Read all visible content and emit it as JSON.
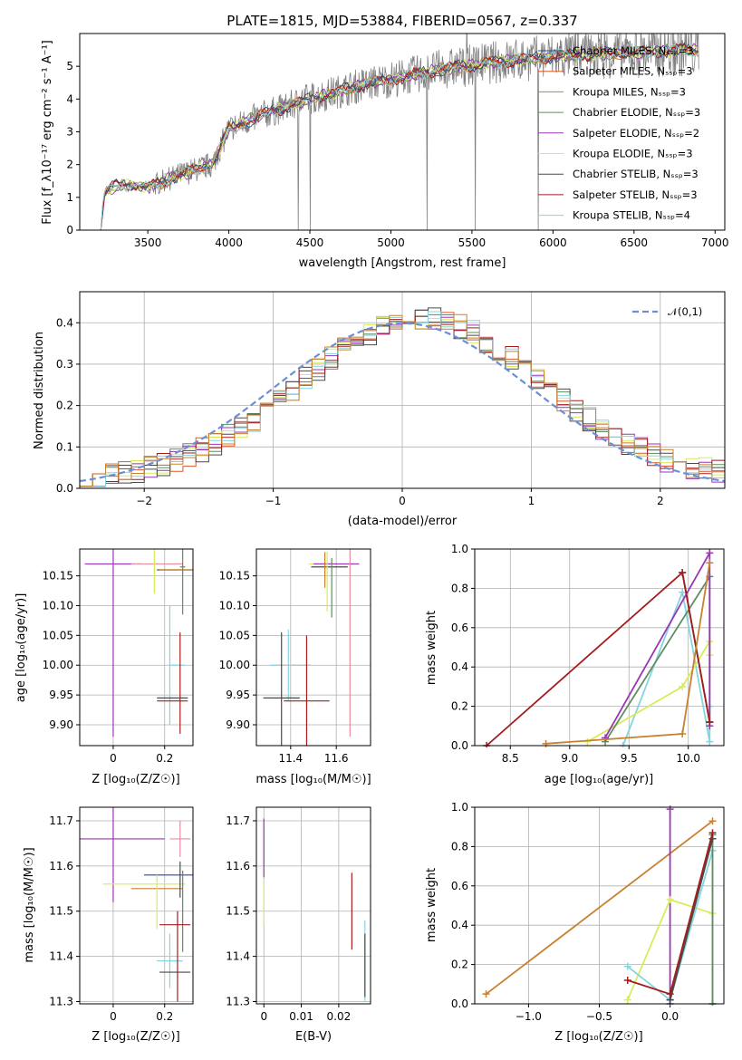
{
  "chart_data": [
    {
      "id": "spectrum",
      "type": "line",
      "title": "PLATE=1815, MJD=53884, FIBERID=0567, z=0.337",
      "xlabel": "wavelength [Angstrom, rest frame]",
      "ylabel": "Flux [f_λ10⁻¹⁷ erg cm⁻² s⁻¹ A⁻¹]",
      "xlim": [
        3080,
        7060
      ],
      "ylim": [
        0,
        6
      ],
      "xticks": [
        3500,
        4000,
        4500,
        5000,
        5500,
        6000,
        6500,
        7000
      ],
      "yticks": [
        0,
        1,
        2,
        3,
        4,
        5
      ],
      "grid": false,
      "legend_position": "upper right",
      "continuum": [
        [
          3200,
          0
        ],
        [
          3210,
          0
        ],
        [
          3230,
          1.1
        ],
        [
          3300,
          1.35
        ],
        [
          3400,
          1.4
        ],
        [
          3500,
          1.3
        ],
        [
          3700,
          1.7
        ],
        [
          3900,
          2.0
        ],
        [
          4000,
          3.1
        ],
        [
          4200,
          3.5
        ],
        [
          4500,
          4.0
        ],
        [
          4800,
          4.4
        ],
        [
          5000,
          4.6
        ],
        [
          5300,
          4.9
        ],
        [
          5600,
          5.1
        ],
        [
          6000,
          5.3
        ],
        [
          6400,
          5.4
        ],
        [
          6800,
          5.5
        ],
        [
          6900,
          5.5
        ]
      ],
      "series": [
        {
          "name": "Chabrier MILES, N_SSP=3",
          "color": "#1f4ea8"
        },
        {
          "name": "Salpeter MILES, N_SSP=3",
          "color": "#d9582b"
        },
        {
          "name": "Kroupa MILES, N_SSP=3",
          "color": "#c8812e"
        },
        {
          "name": "Chabrier ELODIE, N_SSP=3",
          "color": "#5f8c61"
        },
        {
          "name": "Salpeter ELODIE, N_SSP=2",
          "color": "#9b35b5"
        },
        {
          "name": "Kroupa ELODIE, N_SSP=3",
          "color": "#d8ec5a"
        },
        {
          "name": "Chabrier STELIB, N_SSP=3",
          "color": "#4a4a4a"
        },
        {
          "name": "Salpeter STELIB, N_SSP=3",
          "color": "#a51c1c"
        },
        {
          "name": "Kroupa STELIB, N_SSP=4",
          "color": "#85d5e0"
        }
      ]
    },
    {
      "id": "residuals",
      "type": "histogram",
      "xlabel": "(data-model)/error",
      "ylabel": "Normed distribution",
      "xlim": [
        -2.5,
        2.5
      ],
      "ylim": [
        0,
        0.475
      ],
      "xticks": [
        -2,
        -1,
        0,
        1,
        2
      ],
      "yticks": [
        0.0,
        0.1,
        0.2,
        0.3,
        0.4
      ],
      "grid": true,
      "legend_position": "upper right",
      "reference_curve": {
        "name": "𝒩(0,1)",
        "mean": 0.0,
        "sigma": 1.0,
        "color": "#6a8fd8"
      },
      "bin_width": 0.1,
      "bin_start": -2.5,
      "envelope": {
        "mean": 0.15,
        "sigma": 0.93,
        "peak": 0.41,
        "floor": 0.02
      },
      "series_colors": [
        "#d9582b",
        "#5f8c61",
        "#9b35b5",
        "#d8ec5a",
        "#4a4a4a",
        "#a51c1c",
        "#85d5e0",
        "#c8812e"
      ]
    },
    {
      "id": "age_vs_Z",
      "type": "scatter",
      "errorbars": true,
      "xlabel": "Z [log₁₀(Z/Z☉)]",
      "ylabel": "age  [log₁₀(age/yr)]",
      "xlim": [
        -0.13,
        0.31
      ],
      "ylim": [
        9.865,
        10.195
      ],
      "xticks": [
        0.0,
        0.2
      ],
      "yticks": [
        9.9,
        9.95,
        10.0,
        10.05,
        10.1,
        10.15
      ],
      "grid": true,
      "points": [
        {
          "x": 0.0,
          "y": 10.17,
          "xerr": 0.11,
          "yerr": 0.29,
          "color": "#9b35b5"
        },
        {
          "x": 0.17,
          "y": 10.17,
          "xerr": 0.0,
          "yerr": 0.0,
          "color": "#d8ec5a"
        },
        {
          "x": 0.17,
          "y": 10.17,
          "xerr": 0.1,
          "yerr": 0.0,
          "color": "#e88ca0"
        },
        {
          "x": 0.26,
          "y": 10.16,
          "xerr": 0.09,
          "yerr": 0.0,
          "color": "#4a4a4a"
        },
        {
          "x": 0.26,
          "y": 10.16,
          "xerr": 0.08,
          "yerr": 0.0,
          "color": "#c8812e"
        },
        {
          "x": 0.16,
          "y": 10.16,
          "xerr": 0.0,
          "yerr": 0.04,
          "color": "#d8ec5a"
        },
        {
          "x": 0.27,
          "y": 10.165,
          "xerr": 0.01,
          "yerr": 0.08,
          "color": "#5f8c61"
        },
        {
          "x": 0.22,
          "y": 10.0,
          "xerr": 0.0,
          "yerr": 0.1,
          "color": "#85d5e0"
        },
        {
          "x": 0.25,
          "y": 10.0,
          "xerr": 0.03,
          "yerr": 0.0,
          "color": "#85d5e0"
        },
        {
          "x": 0.26,
          "y": 9.97,
          "xerr": 0.0,
          "yerr": 0.085,
          "color": "#a51c1c"
        },
        {
          "x": 0.23,
          "y": 9.945,
          "xerr": 0.06,
          "yerr": 0.0,
          "color": "#4a4a4a"
        },
        {
          "x": 0.23,
          "y": 9.94,
          "xerr": 0.06,
          "yerr": 0.0,
          "color": "#a51c1c"
        }
      ]
    },
    {
      "id": "age_vs_mass",
      "type": "scatter",
      "errorbars": true,
      "xlabel": "mass [log₁₀(M/M☉)]",
      "ylabel": "",
      "xlim": [
        11.25,
        11.75
      ],
      "ylim": [
        9.865,
        10.195
      ],
      "xticks": [
        11.4,
        11.6
      ],
      "yticks": [
        9.9,
        9.95,
        10.0,
        10.05,
        10.1,
        10.15
      ],
      "grid": true,
      "points": [
        {
          "x": 11.58,
          "y": 10.17,
          "xerr": 0.1,
          "yerr": 0.0,
          "color": "#d8ec5a"
        },
        {
          "x": 11.6,
          "y": 10.17,
          "xerr": 0.1,
          "yerr": 0.0,
          "color": "#9b35b5"
        },
        {
          "x": 11.66,
          "y": 10.17,
          "xerr": 0.0,
          "yerr": 0.29,
          "color": "#e88ca0"
        },
        {
          "x": 11.57,
          "y": 10.165,
          "xerr": 0.08,
          "yerr": 0.0,
          "color": "#4a4a4a"
        },
        {
          "x": 11.55,
          "y": 10.16,
          "xerr": 0.0,
          "yerr": 0.03,
          "color": "#c8812e"
        },
        {
          "x": 11.56,
          "y": 10.14,
          "xerr": 0.0,
          "yerr": 0.05,
          "color": "#d8ec5a"
        },
        {
          "x": 11.58,
          "y": 10.13,
          "xerr": 0.0,
          "yerr": 0.05,
          "color": "#5f8c61"
        },
        {
          "x": 11.39,
          "y": 10.0,
          "xerr": 0.08,
          "yerr": 0.06,
          "color": "#85d5e0"
        },
        {
          "x": 11.41,
          "y": 10.0,
          "xerr": 0.08,
          "yerr": 0.0,
          "color": "#c0c0c0"
        },
        {
          "x": 11.36,
          "y": 9.945,
          "xerr": 0.08,
          "yerr": 0.11,
          "color": "#4a4a4a"
        },
        {
          "x": 11.47,
          "y": 9.94,
          "xerr": 0.1,
          "yerr": 0.11,
          "color": "#a51c1c"
        }
      ]
    },
    {
      "id": "massweight_vs_age",
      "type": "line",
      "markers": "+",
      "xlabel": "age  [log₁₀(age/yr)]",
      "ylabel": "mass weight",
      "xlim": [
        8.2,
        10.3
      ],
      "ylim": [
        0.0,
        1.0
      ],
      "xticks": [
        8.5,
        9.0,
        9.5,
        10.0
      ],
      "yticks": [
        0.0,
        0.2,
        0.4,
        0.6,
        0.8,
        1.0
      ],
      "grid": true,
      "series": [
        {
          "color": "#85d5e0",
          "x": [
            9.45,
            9.95,
            10.18,
            10.18
          ],
          "y": [
            0.0,
            0.78,
            0.02,
            0.2
          ]
        },
        {
          "color": "#d8ec5a",
          "x": [
            9.15,
            9.95,
            10.18,
            10.18
          ],
          "y": [
            0.02,
            0.3,
            0.53,
            0.46
          ]
        },
        {
          "color": "#5f8c61",
          "x": [
            9.3,
            10.18,
            10.18
          ],
          "y": [
            0.02,
            0.86,
            0.12
          ]
        },
        {
          "color": "#9b35b5",
          "x": [
            9.3,
            10.18,
            10.18
          ],
          "y": [
            0.04,
            0.98,
            0.1
          ]
        },
        {
          "color": "#4a4a4a",
          "x": [
            9.95,
            10.18
          ],
          "y": [
            0.88,
            0.12
          ]
        },
        {
          "color": "#a51c1c",
          "x": [
            8.3,
            9.95,
            10.18
          ],
          "y": [
            0.0,
            0.88,
            0.12
          ]
        },
        {
          "color": "#c8812e",
          "x": [
            8.8,
            9.95,
            10.18
          ],
          "y": [
            0.01,
            0.06,
            0.93
          ]
        }
      ]
    },
    {
      "id": "mass_vs_Z",
      "type": "scatter",
      "errorbars": true,
      "xlabel": "Z [log₁₀(Z/Z☉)]",
      "ylabel": "mass [log₁₀(M/M☉)]",
      "xlim": [
        -0.13,
        0.31
      ],
      "ylim": [
        11.295,
        11.73
      ],
      "xticks": [
        0.0,
        0.2
      ],
      "yticks": [
        11.3,
        11.4,
        11.5,
        11.6,
        11.7
      ],
      "grid": true,
      "points": [
        {
          "x": 0.0,
          "y": 11.66,
          "xerr": 0.2,
          "yerr": 0.14,
          "color": "#9b35b5"
        },
        {
          "x": 0.26,
          "y": 11.66,
          "xerr": 0.04,
          "yerr": 0.04,
          "color": "#e88ca0"
        },
        {
          "x": 0.22,
          "y": 11.58,
          "xerr": 0.1,
          "yerr": 0.0,
          "color": "#1f4ea8"
        },
        {
          "x": 0.12,
          "y": 11.56,
          "xerr": 0.16,
          "yerr": 0.0,
          "color": "#d8ec5a"
        },
        {
          "x": 0.17,
          "y": 11.55,
          "xerr": 0.1,
          "yerr": 0.0,
          "color": "#c8812e"
        },
        {
          "x": 0.26,
          "y": 11.57,
          "xerr": 0.0,
          "yerr": 0.04,
          "color": "#4a4a4a"
        },
        {
          "x": 0.27,
          "y": 11.5,
          "xerr": 0.0,
          "yerr": 0.09,
          "color": "#5f8c61"
        },
        {
          "x": 0.17,
          "y": 11.52,
          "xerr": 0.0,
          "yerr": 0.06,
          "color": "#d8ec5a"
        },
        {
          "x": 0.24,
          "y": 11.47,
          "xerr": 0.06,
          "yerr": 0.0,
          "color": "#a51c1c"
        },
        {
          "x": 0.22,
          "y": 11.39,
          "xerr": 0.05,
          "yerr": 0.06,
          "color": "#85d5e0"
        },
        {
          "x": 0.24,
          "y": 11.365,
          "xerr": 0.06,
          "yerr": 0.0,
          "color": "#4a4a4a"
        },
        {
          "x": 0.25,
          "y": 11.4,
          "xerr": 0.0,
          "yerr": 0.1,
          "color": "#a51c1c"
        }
      ]
    },
    {
      "id": "mass_vs_ebv",
      "type": "scatter",
      "errorbars": true,
      "xlabel": "E(B-V)",
      "ylabel": "",
      "xlim": [
        -0.002,
        0.0285
      ],
      "ylim": [
        11.295,
        11.73
      ],
      "xticks": [
        0.0,
        0.01,
        0.02
      ],
      "yticks": [
        11.3,
        11.4,
        11.5,
        11.6,
        11.7
      ],
      "grid": true,
      "points": [
        {
          "x": 0.0,
          "y": 11.64,
          "xerr": 0.0,
          "yerr": 0.065,
          "color": "#9b35b5"
        },
        {
          "x": 0.0,
          "y": 11.52,
          "xerr": 0.0,
          "yerr": 0.05,
          "color": "#d8ec5a"
        },
        {
          "x": 0.0235,
          "y": 11.5,
          "xerr": 0.0,
          "yerr": 0.085,
          "color": "#a51c1c"
        },
        {
          "x": 0.027,
          "y": 11.39,
          "xerr": 0.0,
          "yerr": 0.09,
          "color": "#85d5e0"
        },
        {
          "x": 0.027,
          "y": 11.38,
          "xerr": 0.0,
          "yerr": 0.07,
          "color": "#4a4a4a"
        }
      ]
    },
    {
      "id": "massweight_vs_Z",
      "type": "line",
      "markers": "+",
      "xlabel": "Z [log₁₀(Z/Z☉)]",
      "ylabel": "mass weight",
      "xlim": [
        -1.38,
        0.38
      ],
      "ylim": [
        0.0,
        1.0
      ],
      "xticks": [
        -1.0,
        -0.5,
        0.0
      ],
      "yticks": [
        0.0,
        0.2,
        0.4,
        0.6,
        0.8,
        1.0
      ],
      "grid": true,
      "series": [
        {
          "color": "#c8812e",
          "x": [
            -1.3,
            0.3
          ],
          "y": [
            0.05,
            0.93
          ]
        },
        {
          "color": "#9b35b5",
          "x": [
            0.0,
            0.0
          ],
          "y": [
            0.0,
            0.99
          ]
        },
        {
          "color": "#d8ec5a",
          "x": [
            -0.3,
            0.0,
            0.3
          ],
          "y": [
            0.02,
            0.53,
            0.46
          ]
        },
        {
          "color": "#85d5e0",
          "x": [
            -0.3,
            0.0,
            0.3,
            0.3
          ],
          "y": [
            0.19,
            0.02,
            0.78,
            0.0
          ]
        },
        {
          "color": "#5f8c61",
          "x": [
            0.0,
            0.3,
            0.3
          ],
          "y": [
            0.02,
            0.86,
            0.0
          ]
        },
        {
          "color": "#4a4a4a",
          "x": [
            0.0,
            0.3
          ],
          "y": [
            0.02,
            0.84
          ]
        },
        {
          "color": "#a51c1c",
          "x": [
            -0.3,
            0.0,
            0.3
          ],
          "y": [
            0.12,
            0.05,
            0.87
          ]
        }
      ]
    }
  ]
}
